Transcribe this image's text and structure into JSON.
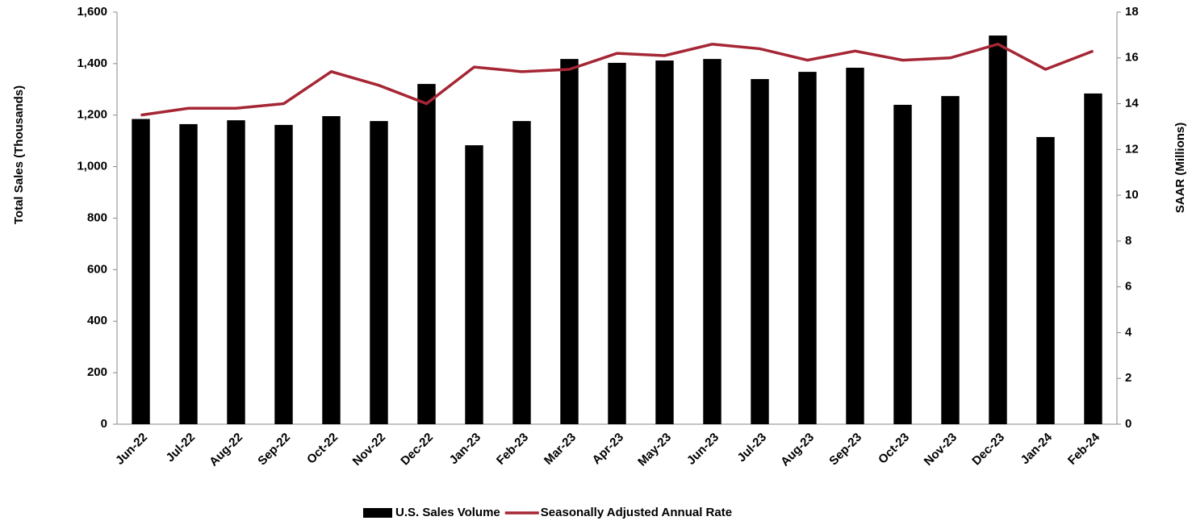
{
  "chart_data": {
    "type": "bar_line",
    "categories": [
      "Jun-22",
      "Jul-22",
      "Aug-22",
      "Sep-22",
      "Oct-22",
      "Nov-22",
      "Dec-22",
      "Jan-23",
      "Feb-23",
      "Mar-23",
      "Apr-23",
      "May-23",
      "Jun-23",
      "Jul-23",
      "Aug-23",
      "Sep-23",
      "Oct-23",
      "Nov-23",
      "Dec-23",
      "Jan-24",
      "Feb-24"
    ],
    "series": [
      {
        "name": "U.S. Sales Volume",
        "type": "bar",
        "color": "#000000",
        "values": [
          1185,
          1165,
          1180,
          1162,
          1196,
          1177,
          1321,
          1083,
          1177,
          1418,
          1403,
          1412,
          1418,
          1340,
          1368,
          1384,
          1240,
          1274,
          1509,
          1115,
          1284
        ]
      },
      {
        "name": "Seasonally Adjusted Annual Rate",
        "type": "line",
        "axis": "y2",
        "color": "#a52634",
        "values": [
          13.5,
          13.8,
          13.8,
          14.0,
          15.4,
          14.8,
          14.0,
          15.6,
          15.4,
          15.5,
          16.2,
          16.1,
          16.6,
          16.4,
          15.9,
          16.3,
          15.9,
          16.0,
          16.6,
          15.5,
          16.3
        ]
      }
    ],
    "y_label": "Total Sales (Thousands)",
    "y2_label": "SAAR (Millions)",
    "ylim": [
      0,
      1600
    ],
    "yticks": [
      0,
      200,
      400,
      600,
      800,
      {
        "value": 1000,
        "label": "1,000"
      },
      {
        "value": 1200,
        "label": "1,200"
      },
      {
        "value": 1400,
        "label": "1,400"
      },
      {
        "value": 1600,
        "label": "1,600"
      }
    ],
    "y2lim": [
      0,
      18
    ],
    "y2ticks": [
      0,
      2,
      4,
      6,
      8,
      10,
      12,
      14,
      16,
      18
    ],
    "legend": "bottom"
  }
}
